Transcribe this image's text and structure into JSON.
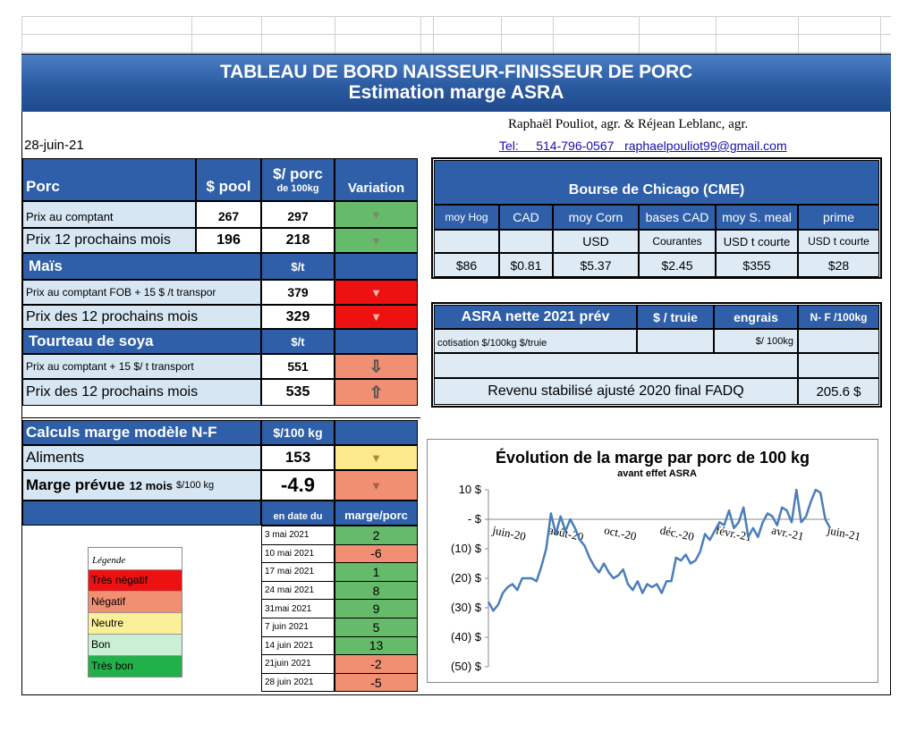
{
  "banner": {
    "title": "TABLEAU  DE BORD NAISSEUR-FINISSEUR  DE PORC",
    "subtitle": "Estimation marge ASRA"
  },
  "header": {
    "date": "28-juin-21",
    "authors": "Raphaël Pouliot, agr.   &   Réjean Leblanc, agr.",
    "contact": "Tel:     514-796-0567   raphaelpouliot99@gmail.com"
  },
  "porc": {
    "title": "Porc",
    "col_pool": "$ pool",
    "col_porc": "$/ porc",
    "col_porc_sub": "de 100kg",
    "col_variation": "Variation",
    "rows": [
      {
        "label": "Prix au comptant",
        "pool": "267",
        "porc": "297",
        "color": "#66bb6a",
        "arrow": "down"
      },
      {
        "label": "Prix 12 prochains mois",
        "pool": "196",
        "porc": "218",
        "color": "#66bb6a",
        "arrow": "down"
      }
    ]
  },
  "mais": {
    "title": "Maïs",
    "unit": "$/t",
    "rows": [
      {
        "label": "Prix au comptant  FOB + 15 $ /t transpor",
        "value": "379",
        "color": "#ee1111",
        "arrow": "down"
      },
      {
        "label": "Prix des 12 prochains mois",
        "value": "329",
        "color": "#ee1111",
        "arrow": "down"
      }
    ]
  },
  "soya": {
    "title": "Tourteau de soya",
    "unit": "$/t",
    "rows": [
      {
        "label": "Prix au comptant  + 15 $/ t  transport",
        "value": "551",
        "color": "#f08f72",
        "arrow": "down-outline"
      },
      {
        "label": "Prix des 12 prochains mois",
        "value": "535",
        "color": "#f08f72",
        "arrow": "up-outline"
      }
    ]
  },
  "cme": {
    "title": "Bourse de Chicago (CME)",
    "headers": [
      "moy Hog",
      "CAD",
      "moy Corn",
      "bases CAD",
      "moy S. meal",
      "prime"
    ],
    "subheaders": [
      "",
      "",
      "USD",
      "Courantes",
      "USD t courte",
      "USD t courte"
    ],
    "values": [
      "$86",
      "$0.81",
      "$5.37",
      "$2.45",
      "$355",
      "$28"
    ]
  },
  "asra": {
    "title": "ASRA nette 2021 prév",
    "col_truie": "$ / truie",
    "col_engrais": "engrais",
    "col_nf": "N- F /100kg",
    "cotisation_label": "cotisation $/100kg  $/truie",
    "engrais_unit": "$/ 100kg",
    "revenu_label": "Revenu stabilisé ajusté 2020 final FADQ",
    "revenu_value": "205.6 $"
  },
  "calculs": {
    "title": "Calculs marge  modèle N-F",
    "unit": "$/100 kg",
    "aliments_label": "Aliments",
    "aliments_value": "153",
    "marge_label": "Marge prévue",
    "marge_sub": "12 mois",
    "marge_unit": "$/100 kg",
    "marge_value": "-4.9",
    "col_date": "en date du",
    "col_marge": "marge/porc",
    "history": [
      {
        "date": "3 mai 2021",
        "value": "2",
        "color": "#66bb6a"
      },
      {
        "date": "10 mai 2021",
        "value": "-6",
        "color": "#f08f72"
      },
      {
        "date": "17 mai 2021",
        "value": "1",
        "color": "#66bb6a"
      },
      {
        "date": "24 mai 2021",
        "value": "8",
        "color": "#66bb6a"
      },
      {
        "date": "31mai 2021",
        "value": "9",
        "color": "#66bb6a"
      },
      {
        "date": "7 juin 2021",
        "value": "5",
        "color": "#66bb6a"
      },
      {
        "date": "14 juin 2021",
        "value": "13",
        "color": "#66bb6a"
      },
      {
        "date": "21juin 2021",
        "value": "-2",
        "color": "#f08f72"
      },
      {
        "date": "28 juin 2021",
        "value": "-5",
        "color": "#f08f72"
      }
    ]
  },
  "legend": {
    "title": "Légende",
    "items": [
      {
        "label": "Très négatif",
        "color": "#ee1111"
      },
      {
        "label": "Négatif",
        "color": "#f08f72"
      },
      {
        "label": "Neutre",
        "color": "#fbf09a"
      },
      {
        "label": "Bon",
        "color": "#c9f0d2"
      },
      {
        "label": "Très bon",
        "color": "#22b04a"
      }
    ]
  },
  "chart_data": {
    "type": "line",
    "title": "Évolution de la marge par porc de 100 kg",
    "subtitle": "avant effet ASRA",
    "ylim": [
      -50,
      10
    ],
    "yticks": [
      10,
      0,
      -10,
      -20,
      -30,
      -40,
      -50
    ],
    "ytick_labels": [
      "10 $",
      " -  $",
      "(10) $",
      "(20) $",
      "(30) $",
      "(40) $",
      "(50) $"
    ],
    "xtick_labels": [
      "juin-20",
      "août-20",
      "oct.-20",
      "déc.-20",
      "févr.-21",
      "avr.-21",
      "juin-21"
    ],
    "color": "#4a7ebb",
    "series": [
      {
        "values": [
          -28,
          -31,
          -29,
          -25,
          -23,
          -22,
          -24,
          -20,
          -20,
          -20,
          -21,
          -16,
          -10,
          2,
          -5,
          1,
          -4,
          0,
          -3,
          -7,
          -9,
          -13,
          -16,
          -18,
          -15,
          -18,
          -20,
          -19,
          -17,
          -22,
          -24,
          -21,
          -25,
          -22,
          -23,
          -22,
          -25,
          -21,
          -21,
          -13,
          -14,
          -12,
          -15,
          -14,
          -11,
          -5,
          -7,
          -4,
          -1,
          -2,
          3,
          -3,
          -1,
          4,
          -6,
          -3,
          -6,
          -1,
          2,
          1,
          -2,
          4,
          3,
          -1,
          10,
          -1,
          1,
          6,
          10,
          9,
          0,
          -3
        ]
      }
    ]
  }
}
